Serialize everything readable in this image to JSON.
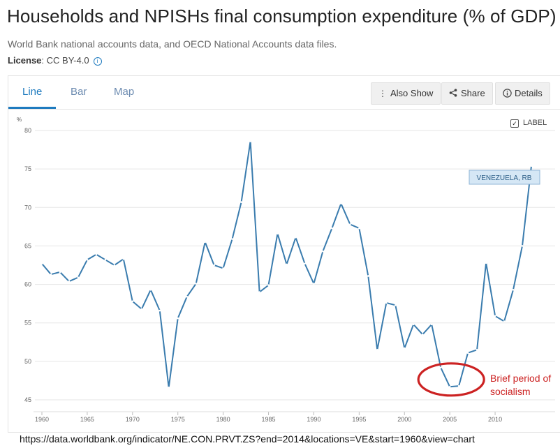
{
  "page": {
    "title": "Households and NPISHs final consumption expenditure (% of GDP)",
    "source": "World Bank national accounts data, and OECD National Accounts data files.",
    "license_label": "License",
    "license_value": ": CC BY-4.0",
    "url": "https://data.worldbank.org/indicator/NE.CON.PRVT.ZS?end=2014&locations=VE&start=1960&view=chart"
  },
  "tabs": [
    {
      "label": "Line",
      "active": true
    },
    {
      "label": "Bar",
      "active": false
    },
    {
      "label": "Map",
      "active": false
    }
  ],
  "toolbar": {
    "also_show": "Also Show",
    "share": "Share",
    "details": "Details"
  },
  "label_toggle": {
    "text": "LABEL",
    "checked": true
  },
  "colors": {
    "line": "#3a7cae",
    "accent": "#1f7bbf",
    "annotation": "#cc2222",
    "grid": "#e6e6e6"
  },
  "chart_data": {
    "type": "line",
    "unit_label": "%",
    "series": [
      {
        "name": "VENEZUELA, RB",
        "x": [
          1960,
          1961,
          1962,
          1963,
          1964,
          1965,
          1966,
          1967,
          1968,
          1969,
          1970,
          1971,
          1972,
          1973,
          1974,
          1975,
          1976,
          1977,
          1978,
          1979,
          1980,
          1981,
          1982,
          1983,
          1984,
          1985,
          1986,
          1987,
          1988,
          1989,
          1990,
          1991,
          1992,
          1993,
          1994,
          1995,
          1996,
          1997,
          1998,
          1999,
          2000,
          2001,
          2002,
          2003,
          2004,
          2005,
          2006,
          2007,
          2008,
          2009,
          2010,
          2011,
          2012,
          2013,
          2014
        ],
        "values": [
          62.7,
          61.3,
          61.6,
          60.4,
          60.9,
          63.2,
          63.9,
          63.2,
          62.5,
          63.3,
          57.8,
          56.8,
          59.3,
          56.6,
          46.6,
          55.6,
          58.4,
          60.1,
          65.5,
          62.5,
          62.1,
          65.9,
          70.7,
          78.6,
          59.0,
          59.9,
          66.6,
          62.6,
          66.1,
          62.7,
          60.1,
          64.3,
          67.3,
          70.5,
          67.8,
          67.3,
          61.1,
          51.5,
          57.6,
          57.3,
          51.7,
          54.8,
          53.5,
          54.8,
          49.2,
          46.7,
          46.8,
          51.1,
          51.5,
          62.8,
          55.9,
          55.2,
          59.3,
          65.0,
          75.4
        ]
      }
    ],
    "xlim": [
      1960,
      2014
    ],
    "ylim": [
      45,
      80
    ],
    "x_ticks": [
      1960,
      1965,
      1970,
      1975,
      1980,
      1985,
      1990,
      1995,
      2000,
      2005,
      2010
    ],
    "y_ticks": [
      45,
      50,
      55,
      60,
      65,
      70,
      75,
      80
    ],
    "grid": true,
    "series_label": "VENEZUELA, RB",
    "annotation": {
      "text_line1": "Brief period of",
      "text_line2": "socialism",
      "center_year": 2005,
      "center_value": 47.6
    }
  }
}
